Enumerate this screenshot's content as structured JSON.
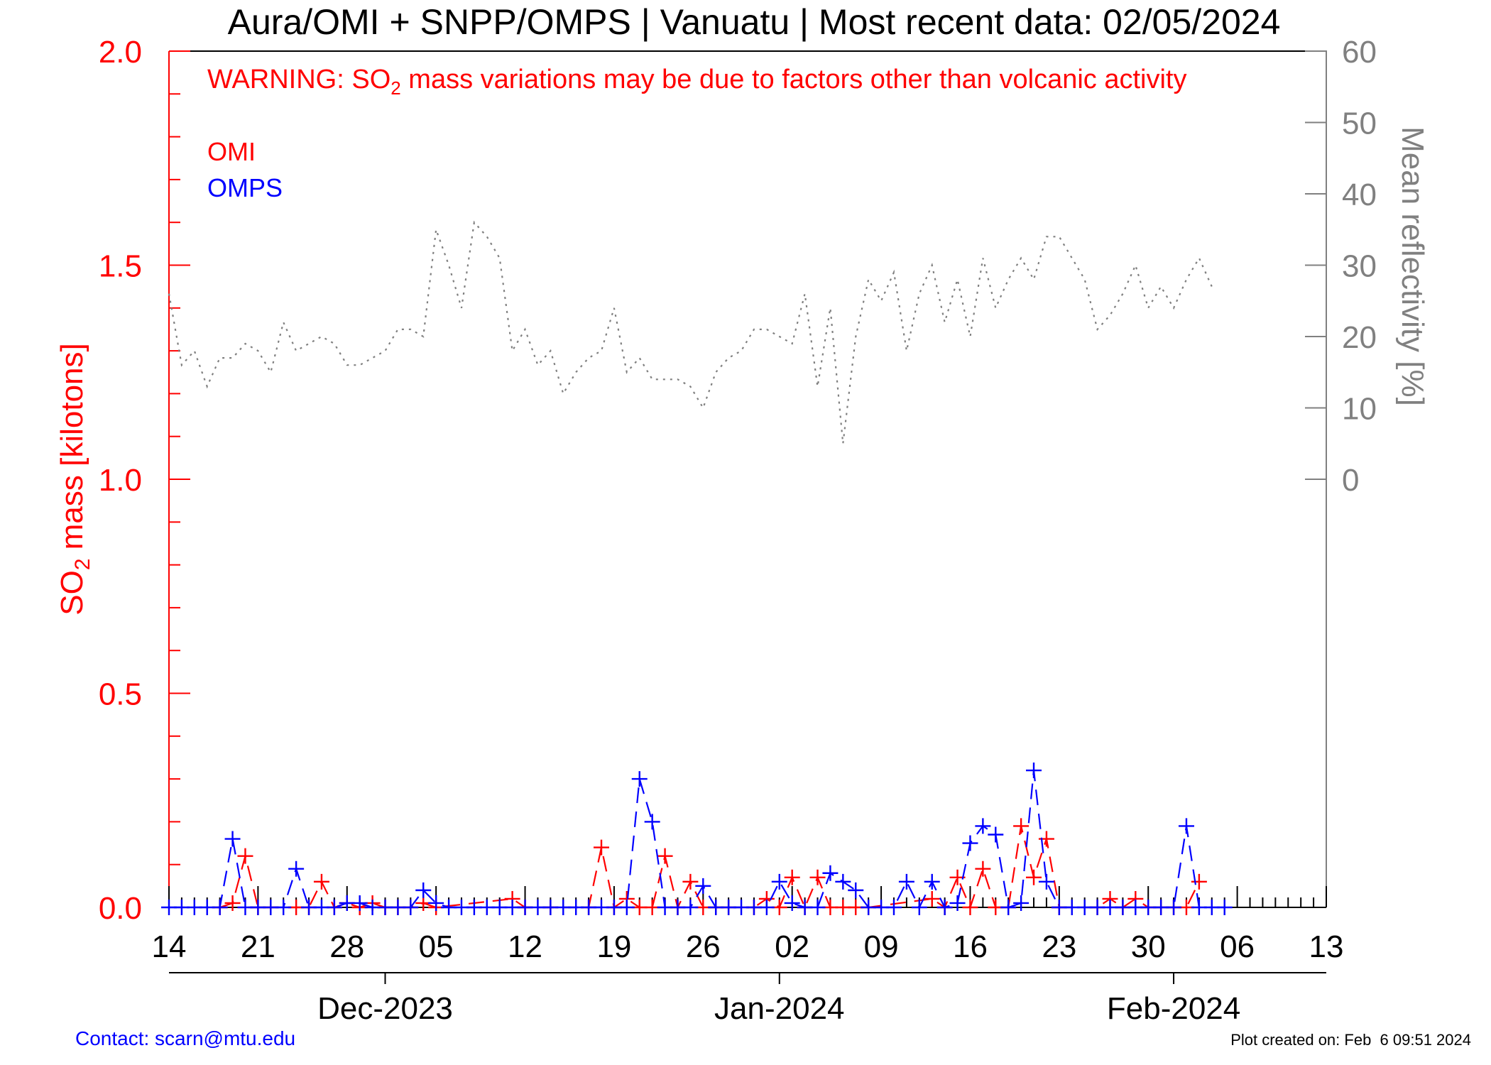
{
  "title": "Aura/OMI + SNPP/OMPS | Vanuatu | Most recent data: 02/05/2024",
  "warning": {
    "prefix": "WARNING: SO",
    "sub": "2",
    "suffix": " mass variations may be due to factors other than volcanic activity"
  },
  "left_axis": {
    "label_prefix": "SO",
    "label_sub": "2",
    "label_suffix": " mass [kilotons]",
    "ticks": [
      "0.0",
      "0.5",
      "1.0",
      "1.5",
      "2.0"
    ]
  },
  "right_axis": {
    "label": "Mean reflectivity [%]",
    "ticks": [
      "0",
      "10",
      "20",
      "30",
      "40",
      "50",
      "60"
    ]
  },
  "x_day_ticks": [
    "14",
    "21",
    "28",
    "05",
    "12",
    "19",
    "26",
    "02",
    "09",
    "16",
    "23",
    "30",
    "06",
    "13"
  ],
  "x_month_ticks": [
    "Dec-2023",
    "Jan-2024",
    "Feb-2024"
  ],
  "contact": "Contact: scarn@mtu.edu",
  "created": "Plot created on: Feb  6 09:51 2024",
  "colors": {
    "omi": "#ff0000",
    "omps": "#0000ff",
    "reflectivity": "#808080",
    "left_axis": "#ff0000",
    "right_axis": "#808080",
    "contact": "#0000ff"
  },
  "chart_data": {
    "type": "line",
    "x_axis": {
      "start": "2023-11-14",
      "end": "2024-02-13"
    },
    "y_left": {
      "label": "SO2 mass [kilotons]",
      "range": [
        0,
        2.0
      ],
      "ticks": [
        0,
        0.5,
        1.0,
        1.5,
        2.0
      ]
    },
    "y_right": {
      "label": "Mean reflectivity [%]",
      "range": [
        -60,
        60
      ],
      "ticks": [
        0,
        10,
        20,
        30,
        40,
        50,
        60
      ]
    },
    "legend_position": "top-left",
    "series": [
      {
        "name": "OMI",
        "axis": "left",
        "style": "dashed-plus",
        "points": [
          [
            "2023-11-18",
            0.0
          ],
          [
            "2023-11-19",
            0.01
          ],
          [
            "2023-11-20",
            0.12
          ],
          [
            "2023-11-21",
            0.0
          ],
          [
            "2023-11-22",
            0.0
          ],
          [
            "2023-11-24",
            0.0
          ],
          [
            "2023-11-25",
            0.0
          ],
          [
            "2023-11-26",
            0.06
          ],
          [
            "2023-11-27",
            0.0
          ],
          [
            "2023-11-28",
            0.01
          ],
          [
            "2023-11-29",
            0.0
          ],
          [
            "2023-11-30",
            0.01
          ],
          [
            "2023-12-01",
            0.0
          ],
          [
            "2023-12-02",
            0.0
          ],
          [
            "2023-12-03",
            0.0
          ],
          [
            "2023-12-04",
            0.01
          ],
          [
            "2023-12-05",
            0.0
          ],
          [
            "2023-12-11",
            0.02
          ],
          [
            "2023-12-12",
            0.0
          ],
          [
            "2023-12-14",
            0.0
          ],
          [
            "2023-12-17",
            0.0
          ],
          [
            "2023-12-18",
            0.14
          ],
          [
            "2023-12-19",
            0.0
          ],
          [
            "2023-12-20",
            0.02
          ],
          [
            "2023-12-21",
            0.0
          ],
          [
            "2023-12-22",
            0.0
          ],
          [
            "2023-12-23",
            0.12
          ],
          [
            "2023-12-24",
            0.0
          ],
          [
            "2023-12-25",
            0.06
          ],
          [
            "2023-12-26",
            0.0
          ],
          [
            "2023-12-27",
            0.0
          ],
          [
            "2023-12-28",
            0.0
          ],
          [
            "2023-12-30",
            0.0
          ],
          [
            "2023-12-31",
            0.02
          ],
          [
            "2024-01-01",
            0.0
          ],
          [
            "2024-01-02",
            0.07
          ],
          [
            "2024-01-03",
            0.0
          ],
          [
            "2024-01-04",
            0.07
          ],
          [
            "2024-01-05",
            0.0
          ],
          [
            "2024-01-06",
            0.0
          ],
          [
            "2024-01-07",
            0.0
          ],
          [
            "2024-01-08",
            0.0
          ],
          [
            "2024-01-13",
            0.02
          ],
          [
            "2024-01-14",
            0.0
          ],
          [
            "2024-01-15",
            0.07
          ],
          [
            "2024-01-16",
            0.0
          ],
          [
            "2024-01-17",
            0.09
          ],
          [
            "2024-01-18",
            0.0
          ],
          [
            "2024-01-19",
            0.0
          ],
          [
            "2024-01-20",
            0.19
          ],
          [
            "2024-01-21",
            0.07
          ],
          [
            "2024-01-22",
            0.16
          ],
          [
            "2024-01-23",
            0.0
          ],
          [
            "2024-01-26",
            0.0
          ],
          [
            "2024-01-27",
            0.02
          ],
          [
            "2024-01-28",
            0.0
          ],
          [
            "2024-01-29",
            0.02
          ],
          [
            "2024-01-30",
            0.0
          ],
          [
            "2024-01-31",
            0.0
          ],
          [
            "2024-02-01",
            0.0
          ],
          [
            "2024-02-02",
            0.0
          ],
          [
            "2024-02-03",
            0.06
          ]
        ]
      },
      {
        "name": "OMPS",
        "axis": "left",
        "style": "dashed-plus",
        "points": [
          [
            "2023-11-14",
            0.0
          ],
          [
            "2023-11-15",
            0.0
          ],
          [
            "2023-11-16",
            0.0
          ],
          [
            "2023-11-17",
            0.0
          ],
          [
            "2023-11-18",
            0.0
          ],
          [
            "2023-11-19",
            0.16
          ],
          [
            "2023-11-20",
            0.0
          ],
          [
            "2023-11-21",
            0.0
          ],
          [
            "2023-11-22",
            0.0
          ],
          [
            "2023-11-23",
            0.0
          ],
          [
            "2023-11-24",
            0.09
          ],
          [
            "2023-11-25",
            0.0
          ],
          [
            "2023-11-26",
            0.0
          ],
          [
            "2023-11-27",
            0.0
          ],
          [
            "2023-11-28",
            0.01
          ],
          [
            "2023-11-29",
            0.01
          ],
          [
            "2023-11-30",
            0.0
          ],
          [
            "2023-12-01",
            0.0
          ],
          [
            "2023-12-02",
            0.0
          ],
          [
            "2023-12-03",
            0.0
          ],
          [
            "2023-12-04",
            0.04
          ],
          [
            "2023-12-05",
            0.01
          ],
          [
            "2023-12-06",
            0.0
          ],
          [
            "2023-12-07",
            0.0
          ],
          [
            "2023-12-08",
            0.0
          ],
          [
            "2023-12-09",
            0.0
          ],
          [
            "2023-12-10",
            0.0
          ],
          [
            "2023-12-11",
            0.0
          ],
          [
            "2023-12-12",
            0.0
          ],
          [
            "2023-12-13",
            0.0
          ],
          [
            "2023-12-14",
            0.0
          ],
          [
            "2023-12-15",
            0.0
          ],
          [
            "2023-12-16",
            0.0
          ],
          [
            "2023-12-17",
            0.0
          ],
          [
            "2023-12-18",
            0.0
          ],
          [
            "2023-12-19",
            0.0
          ],
          [
            "2023-12-20",
            0.0
          ],
          [
            "2023-12-21",
            0.3
          ],
          [
            "2023-12-22",
            0.2
          ],
          [
            "2023-12-23",
            0.0
          ],
          [
            "2023-12-24",
            0.0
          ],
          [
            "2023-12-25",
            0.0
          ],
          [
            "2023-12-26",
            0.05
          ],
          [
            "2023-12-27",
            0.0
          ],
          [
            "2023-12-28",
            0.0
          ],
          [
            "2023-12-29",
            0.0
          ],
          [
            "2023-12-30",
            0.0
          ],
          [
            "2023-12-31",
            0.0
          ],
          [
            "2024-01-01",
            0.06
          ],
          [
            "2024-01-02",
            0.01
          ],
          [
            "2024-01-03",
            0.0
          ],
          [
            "2024-01-04",
            0.0
          ],
          [
            "2024-01-05",
            0.08
          ],
          [
            "2024-01-06",
            0.06
          ],
          [
            "2024-01-07",
            0.04
          ],
          [
            "2024-01-08",
            0.0
          ],
          [
            "2024-01-09",
            0.0
          ],
          [
            "2024-01-10",
            0.0
          ],
          [
            "2024-01-11",
            0.06
          ],
          [
            "2024-01-12",
            0.0
          ],
          [
            "2024-01-13",
            0.06
          ],
          [
            "2024-01-14",
            0.0
          ],
          [
            "2024-01-15",
            0.01
          ],
          [
            "2024-01-16",
            0.15
          ],
          [
            "2024-01-17",
            0.19
          ],
          [
            "2024-01-18",
            0.17
          ],
          [
            "2024-01-19",
            0.0
          ],
          [
            "2024-01-20",
            0.01
          ],
          [
            "2024-01-21",
            0.32
          ],
          [
            "2024-01-22",
            0.06
          ],
          [
            "2024-01-23",
            0.0
          ],
          [
            "2024-01-24",
            0.0
          ],
          [
            "2024-01-25",
            0.0
          ],
          [
            "2024-01-26",
            0.0
          ],
          [
            "2024-01-27",
            0.0
          ],
          [
            "2024-01-28",
            0.0
          ],
          [
            "2024-01-29",
            0.0
          ],
          [
            "2024-01-30",
            0.0
          ],
          [
            "2024-01-31",
            0.0
          ],
          [
            "2024-02-01",
            0.0
          ],
          [
            "2024-02-02",
            0.19
          ],
          [
            "2024-02-03",
            0.0
          ],
          [
            "2024-02-04",
            0.0
          ],
          [
            "2024-02-05",
            0.0
          ]
        ]
      },
      {
        "name": "Mean reflectivity",
        "axis": "right",
        "style": "dotted",
        "points": [
          [
            "2023-11-14",
            26
          ],
          [
            "2023-11-15",
            16
          ],
          [
            "2023-11-16",
            18
          ],
          [
            "2023-11-17",
            13
          ],
          [
            "2023-11-18",
            17
          ],
          [
            "2023-11-19",
            17
          ],
          [
            "2023-11-20",
            19
          ],
          [
            "2023-11-21",
            18
          ],
          [
            "2023-11-22",
            15
          ],
          [
            "2023-11-23",
            22
          ],
          [
            "2023-11-24",
            18
          ],
          [
            "2023-11-25",
            19
          ],
          [
            "2023-11-26",
            20
          ],
          [
            "2023-11-27",
            19
          ],
          [
            "2023-11-28",
            16
          ],
          [
            "2023-11-29",
            16
          ],
          [
            "2023-11-30",
            17
          ],
          [
            "2023-12-01",
            18
          ],
          [
            "2023-12-02",
            21
          ],
          [
            "2023-12-03",
            21
          ],
          [
            "2023-12-04",
            20
          ],
          [
            "2023-12-05",
            35
          ],
          [
            "2023-12-06",
            30
          ],
          [
            "2023-12-07",
            24
          ],
          [
            "2023-12-08",
            36
          ],
          [
            "2023-12-09",
            34
          ],
          [
            "2023-12-10",
            31
          ],
          [
            "2023-12-11",
            18
          ],
          [
            "2023-12-12",
            21
          ],
          [
            "2023-12-13",
            16
          ],
          [
            "2023-12-14",
            18
          ],
          [
            "2023-12-15",
            12
          ],
          [
            "2023-12-16",
            15
          ],
          [
            "2023-12-17",
            17
          ],
          [
            "2023-12-18",
            18
          ],
          [
            "2023-12-19",
            24
          ],
          [
            "2023-12-20",
            15
          ],
          [
            "2023-12-21",
            17
          ],
          [
            "2023-12-22",
            14
          ],
          [
            "2023-12-23",
            14
          ],
          [
            "2023-12-24",
            14
          ],
          [
            "2023-12-25",
            13
          ],
          [
            "2023-12-26",
            10
          ],
          [
            "2023-12-27",
            15
          ],
          [
            "2023-12-28",
            17
          ],
          [
            "2023-12-29",
            18
          ],
          [
            "2023-12-30",
            21
          ],
          [
            "2023-12-31",
            21
          ],
          [
            "2024-01-01",
            20
          ],
          [
            "2024-01-02",
            19
          ],
          [
            "2024-01-03",
            26
          ],
          [
            "2024-01-04",
            13
          ],
          [
            "2024-01-05",
            24
          ],
          [
            "2024-01-06",
            5
          ],
          [
            "2024-01-07",
            20
          ],
          [
            "2024-01-08",
            28
          ],
          [
            "2024-01-09",
            25
          ],
          [
            "2024-01-10",
            29
          ],
          [
            "2024-01-11",
            18
          ],
          [
            "2024-01-12",
            26
          ],
          [
            "2024-01-13",
            30
          ],
          [
            "2024-01-14",
            22
          ],
          [
            "2024-01-15",
            28
          ],
          [
            "2024-01-16",
            20
          ],
          [
            "2024-01-17",
            31
          ],
          [
            "2024-01-18",
            24
          ],
          [
            "2024-01-19",
            28
          ],
          [
            "2024-01-20",
            31
          ],
          [
            "2024-01-21",
            28
          ],
          [
            "2024-01-22",
            34
          ],
          [
            "2024-01-23",
            34
          ],
          [
            "2024-01-24",
            31
          ],
          [
            "2024-01-25",
            28
          ],
          [
            "2024-01-26",
            21
          ],
          [
            "2024-01-27",
            23
          ],
          [
            "2024-01-28",
            26
          ],
          [
            "2024-01-29",
            30
          ],
          [
            "2024-01-30",
            24
          ],
          [
            "2024-01-31",
            27
          ],
          [
            "2024-02-01",
            24
          ],
          [
            "2024-02-02",
            28
          ],
          [
            "2024-02-03",
            31
          ],
          [
            "2024-02-04",
            27
          ]
        ]
      }
    ]
  }
}
